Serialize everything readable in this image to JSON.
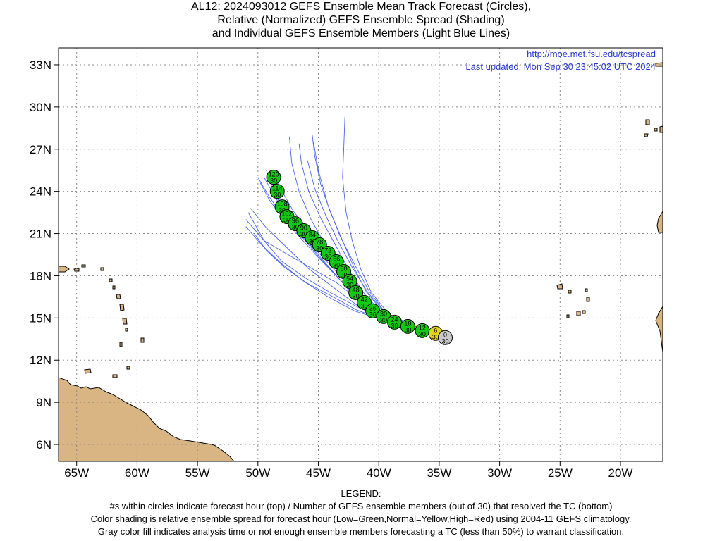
{
  "title": {
    "line1": "AL12: 2024093012 GEFS Ensemble Mean Track Forecast (Circles),",
    "line2": "Relative (Normalized) GEFS Ensemble Spread (Shading)",
    "line3": "and Individual GEFS Ensemble Members (Light Blue Lines)"
  },
  "info": {
    "url": "http://moe.met.fsu.edu/tcspread",
    "updated": "Last updated: Mon Sep 30 23:45:02 UTC 2024"
  },
  "map": {
    "lon_range": [
      -66.5,
      -16.5
    ],
    "lat_range": [
      4.8,
      34.2
    ],
    "lat_ticks": [
      6,
      9,
      12,
      15,
      18,
      21,
      24,
      27,
      30,
      33
    ],
    "lat_labels": [
      "6N",
      "9N",
      "12N",
      "15N",
      "18N",
      "21N",
      "24N",
      "27N",
      "30N",
      "33N"
    ],
    "lon_ticks": [
      -65,
      -60,
      -55,
      -50,
      -45,
      -40,
      -35,
      -30,
      -25,
      -20
    ],
    "lon_labels": [
      "65W",
      "60W",
      "55W",
      "50W",
      "45W",
      "40W",
      "35W",
      "30W",
      "25W",
      "20W"
    ],
    "grid": true,
    "colors": {
      "land": "#d9b583",
      "member_line": "#4a64ee",
      "low_spread": "#13c913",
      "normal_spread": "#e3d31b",
      "analysis": "#c8c8c8",
      "grid": "#8c8c8c"
    }
  },
  "track": [
    {
      "hour": "0",
      "members": "30",
      "lon": -34.5,
      "lat": 13.6,
      "class": "analysis"
    },
    {
      "hour": "6",
      "members": "30",
      "lon": -35.3,
      "lat": 13.9,
      "class": "normal"
    },
    {
      "hour": "12",
      "members": "30",
      "lon": -36.4,
      "lat": 14.1,
      "class": "low"
    },
    {
      "hour": "18",
      "members": "30",
      "lon": -37.6,
      "lat": 14.4,
      "class": "low"
    },
    {
      "hour": "24",
      "members": "30",
      "lon": -38.7,
      "lat": 14.7,
      "class": "low"
    },
    {
      "hour": "30",
      "members": "30",
      "lon": -39.6,
      "lat": 15.1,
      "class": "low"
    },
    {
      "hour": "36",
      "members": "30",
      "lon": -40.5,
      "lat": 15.5,
      "class": "low"
    },
    {
      "hour": "42",
      "members": "30",
      "lon": -41.2,
      "lat": 16.1,
      "class": "low"
    },
    {
      "hour": "48",
      "members": "30",
      "lon": -41.9,
      "lat": 16.8,
      "class": "low"
    },
    {
      "hour": "54",
      "members": "30",
      "lon": -42.4,
      "lat": 17.6,
      "class": "low"
    },
    {
      "hour": "60",
      "members": "30",
      "lon": -42.9,
      "lat": 18.3,
      "class": "low"
    },
    {
      "hour": "66",
      "members": "30",
      "lon": -43.5,
      "lat": 19.0,
      "class": "low"
    },
    {
      "hour": "72",
      "members": "30",
      "lon": -44.2,
      "lat": 19.6,
      "class": "low"
    },
    {
      "hour": "78",
      "members": "30",
      "lon": -44.9,
      "lat": 20.2,
      "class": "low"
    },
    {
      "hour": "84",
      "members": "30",
      "lon": -45.5,
      "lat": 20.7,
      "class": "low"
    },
    {
      "hour": "90",
      "members": "30",
      "lon": -46.2,
      "lat": 21.2,
      "class": "low"
    },
    {
      "hour": "96",
      "members": "30",
      "lon": -46.9,
      "lat": 21.7,
      "class": "low"
    },
    {
      "hour": "102",
      "members": "30",
      "lon": -47.6,
      "lat": 22.2,
      "class": "low"
    },
    {
      "hour": "108",
      "members": "30",
      "lon": -48.0,
      "lat": 22.9,
      "class": "low"
    },
    {
      "hour": "114",
      "members": "30",
      "lon": -48.4,
      "lat": 24.0,
      "class": "low"
    },
    {
      "hour": "120",
      "members": "30",
      "lon": -48.7,
      "lat": 25.0,
      "class": "low"
    }
  ],
  "members": [
    [
      [
        -34.5,
        13.6
      ],
      [
        -37,
        14.2
      ],
      [
        -39.5,
        14.9
      ],
      [
        -41.5,
        16
      ],
      [
        -43,
        17.5
      ],
      [
        -44.5,
        19
      ],
      [
        -46,
        20.5
      ],
      [
        -47.5,
        22
      ],
      [
        -48.5,
        23.5
      ],
      [
        -49.5,
        25
      ]
    ],
    [
      [
        -34.5,
        13.6
      ],
      [
        -37,
        14.3
      ],
      [
        -39.5,
        15.1
      ],
      [
        -41.2,
        16.5
      ],
      [
        -42.5,
        18
      ],
      [
        -44,
        19.5
      ],
      [
        -45.5,
        21
      ],
      [
        -47,
        22.5
      ],
      [
        -48,
        24
      ],
      [
        -48.8,
        25.5
      ]
    ],
    [
      [
        -34.5,
        13.6
      ],
      [
        -37,
        14.3
      ],
      [
        -39.5,
        15
      ],
      [
        -41.5,
        16.2
      ],
      [
        -43.5,
        17.5
      ],
      [
        -45.5,
        18.5
      ],
      [
        -47.5,
        19.5
      ],
      [
        -49.5,
        20.5
      ],
      [
        -51,
        22
      ]
    ],
    [
      [
        -34.5,
        13.6
      ],
      [
        -37,
        14.2
      ],
      [
        -39.5,
        14.9
      ],
      [
        -41.8,
        15.8
      ],
      [
        -44,
        16.8
      ],
      [
        -46,
        17.8
      ],
      [
        -48,
        19
      ],
      [
        -49.5,
        20.5
      ],
      [
        -50.8,
        22.5
      ]
    ],
    [
      [
        -34.5,
        13.6
      ],
      [
        -37,
        14.3
      ],
      [
        -39.4,
        15.2
      ],
      [
        -41,
        16.8
      ],
      [
        -42,
        18.5
      ],
      [
        -43,
        20.5
      ],
      [
        -44,
        22.5
      ],
      [
        -44.8,
        24.5
      ],
      [
        -45.3,
        26.5
      ],
      [
        -45.5,
        28
      ]
    ],
    [
      [
        -34.5,
        13.6
      ],
      [
        -37,
        14.4
      ],
      [
        -39.2,
        15.3
      ],
      [
        -40.6,
        16.8
      ],
      [
        -41.5,
        18.5
      ],
      [
        -42.2,
        20.5
      ],
      [
        -42.7,
        22.5
      ],
      [
        -43,
        25
      ],
      [
        -42.9,
        27
      ],
      [
        -42.8,
        29.3
      ]
    ],
    [
      [
        -34.5,
        13.6
      ],
      [
        -37,
        14.3
      ],
      [
        -39.3,
        15.2
      ],
      [
        -40.8,
        16.9
      ],
      [
        -42,
        18.8
      ],
      [
        -43.2,
        20.8
      ],
      [
        -44.2,
        23
      ],
      [
        -45,
        25.5
      ],
      [
        -45.4,
        27.5
      ]
    ],
    [
      [
        -34.5,
        13.6
      ],
      [
        -37,
        14.3
      ],
      [
        -39.4,
        15.1
      ],
      [
        -41.3,
        16.5
      ],
      [
        -42.8,
        18.2
      ],
      [
        -44.3,
        20
      ],
      [
        -45.6,
        22
      ],
      [
        -46.6,
        24
      ],
      [
        -47.2,
        26
      ],
      [
        -47.4,
        27.9
      ]
    ],
    [
      [
        -34.5,
        13.6
      ],
      [
        -37,
        14.2
      ],
      [
        -39.5,
        15
      ],
      [
        -41.6,
        16.3
      ],
      [
        -43.3,
        17.8
      ],
      [
        -45,
        19.3
      ],
      [
        -46.6,
        20.8
      ],
      [
        -48,
        22.3
      ],
      [
        -49.2,
        23.8
      ],
      [
        -50,
        25
      ]
    ],
    [
      [
        -34.5,
        13.6
      ],
      [
        -37,
        14.2
      ],
      [
        -39.5,
        14.9
      ],
      [
        -41.8,
        15.9
      ],
      [
        -43.8,
        17.2
      ],
      [
        -45.8,
        18.5
      ],
      [
        -47.6,
        20
      ],
      [
        -49.3,
        21.4
      ],
      [
        -50.6,
        22.8
      ]
    ],
    [
      [
        -34.5,
        13.6
      ],
      [
        -37,
        14.3
      ],
      [
        -39.5,
        15
      ],
      [
        -41.4,
        16.3
      ],
      [
        -43,
        17.8
      ],
      [
        -44.6,
        19.3
      ],
      [
        -46.2,
        20.7
      ],
      [
        -47.8,
        22
      ],
      [
        -49,
        23.3
      ],
      [
        -49.8,
        24.6
      ]
    ],
    [
      [
        -34.5,
        13.6
      ],
      [
        -37,
        14.2
      ],
      [
        -39.5,
        14.8
      ],
      [
        -42,
        15.5
      ],
      [
        -44.2,
        16.5
      ],
      [
        -46.2,
        17.6
      ],
      [
        -48.1,
        18.9
      ],
      [
        -49.7,
        20.2
      ],
      [
        -51,
        21.5
      ]
    ],
    [
      [
        -34.5,
        13.6
      ],
      [
        -37,
        14.3
      ],
      [
        -39.4,
        15.1
      ],
      [
        -41.1,
        16.6
      ],
      [
        -42.4,
        18.3
      ],
      [
        -43.6,
        20.2
      ],
      [
        -44.8,
        22.1
      ],
      [
        -45.8,
        24
      ],
      [
        -46.4,
        26
      ],
      [
        -46.6,
        27.4
      ]
    ],
    [
      [
        -34.5,
        13.6
      ],
      [
        -37,
        14.3
      ],
      [
        -39.5,
        15
      ],
      [
        -41.5,
        16.2
      ],
      [
        -43.2,
        17.7
      ],
      [
        -44.8,
        19.2
      ],
      [
        -46.4,
        20.8
      ],
      [
        -47.8,
        22.5
      ],
      [
        -48.8,
        24.2
      ],
      [
        -49.3,
        25.5
      ]
    ],
    [
      [
        -34.5,
        13.6
      ],
      [
        -37,
        14.3
      ],
      [
        -39.3,
        15.2
      ],
      [
        -40.9,
        16.8
      ],
      [
        -42.2,
        18.6
      ],
      [
        -43.4,
        20.5
      ],
      [
        -44.4,
        22.3
      ],
      [
        -45.3,
        24.2
      ],
      [
        -45.9,
        26.2
      ]
    ],
    [
      [
        -34.5,
        13.6
      ],
      [
        -37,
        14.2
      ],
      [
        -39.5,
        14.8
      ],
      [
        -41.9,
        15.6
      ],
      [
        -44,
        16.6
      ],
      [
        -46,
        17.5
      ],
      [
        -47.8,
        18.6
      ],
      [
        -49.3,
        19.8
      ],
      [
        -50.3,
        21
      ]
    ]
  ],
  "legend": {
    "heading": "LEGEND:",
    "line1": "#s within circles indicate forecast hour (top) / Number of GEFS ensemble members (out of 30) that resolved the TC (bottom)",
    "line2": "Color shading is relative ensemble spread for forecast hour (Low=Green,Normal=Yellow,High=Red) using 2004-11 GEFS climatology.",
    "line3": "Gray color fill indicates analysis time or not enough ensemble members forecasting a TC (less than 50%) to warrant classification."
  }
}
